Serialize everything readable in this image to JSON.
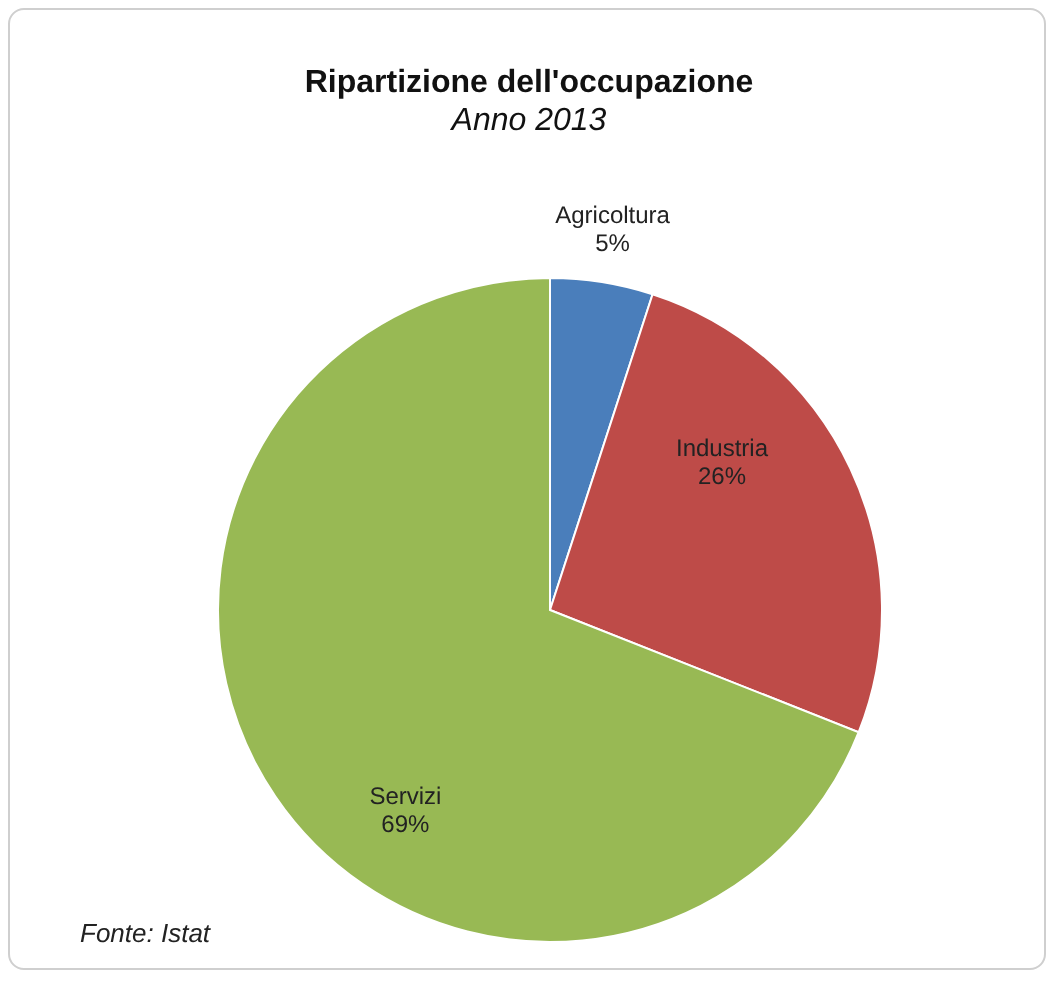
{
  "chart_data": {
    "type": "pie",
    "title": "Ripartizione dell'occupazione",
    "subtitle": "Anno 2013",
    "categories": [
      "Agricoltura",
      "Industria",
      "Servizi"
    ],
    "values": [
      5,
      26,
      69
    ],
    "value_labels": [
      "5%",
      "26%",
      "69%"
    ],
    "colors": [
      "#4a7ebb",
      "#be4b48",
      "#98b954"
    ],
    "annotations": [
      "Fonte: Istat"
    ],
    "legend": false
  }
}
